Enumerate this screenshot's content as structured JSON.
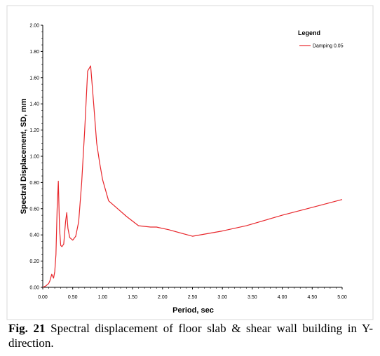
{
  "chart_data": {
    "type": "line",
    "xlabel": "Period, sec",
    "ylabel": "Spectral Displacement, SD, mm",
    "xlim": [
      0,
      5
    ],
    "ylim": [
      0,
      2
    ],
    "xticks": [
      "0.00",
      "0.50",
      "1.00",
      "1.50",
      "2.00",
      "2.50",
      "3.00",
      "3.50",
      "4.00",
      "4.50",
      "5.00"
    ],
    "yticks": [
      "0.00",
      "0.20",
      "0.40",
      "0.60",
      "0.80",
      "1.00",
      "1.20",
      "1.40",
      "1.60",
      "1.80",
      "2.00"
    ],
    "grid": false,
    "legend": {
      "title": "Legend",
      "position": "top-right"
    },
    "series": [
      {
        "name": "Damping 0.05",
        "color": "#e8262b",
        "x": [
          0.0,
          0.05,
          0.1,
          0.12,
          0.15,
          0.18,
          0.2,
          0.22,
          0.24,
          0.26,
          0.28,
          0.3,
          0.32,
          0.35,
          0.38,
          0.4,
          0.42,
          0.45,
          0.5,
          0.55,
          0.6,
          0.65,
          0.7,
          0.75,
          0.8,
          0.85,
          0.9,
          0.95,
          1.0,
          1.1,
          1.2,
          1.4,
          1.6,
          1.8,
          1.9,
          2.0,
          2.1,
          2.5,
          3.0,
          3.4,
          4.0,
          4.5,
          5.0
        ],
        "y": [
          0.0,
          0.01,
          0.03,
          0.05,
          0.1,
          0.07,
          0.12,
          0.25,
          0.6,
          0.81,
          0.45,
          0.32,
          0.31,
          0.33,
          0.5,
          0.57,
          0.45,
          0.38,
          0.36,
          0.39,
          0.5,
          0.8,
          1.2,
          1.65,
          1.69,
          1.4,
          1.1,
          0.95,
          0.82,
          0.66,
          0.62,
          0.54,
          0.47,
          0.46,
          0.46,
          0.45,
          0.44,
          0.39,
          0.43,
          0.47,
          0.55,
          0.61,
          0.67
        ]
      }
    ]
  },
  "caption": {
    "label": "Fig. 21",
    "text": "Spectral displacement of floor slab & shear wall building in Y-direction."
  },
  "colors": {
    "line": "#e8262b",
    "axis": "#000000",
    "background": "#ffffff"
  }
}
